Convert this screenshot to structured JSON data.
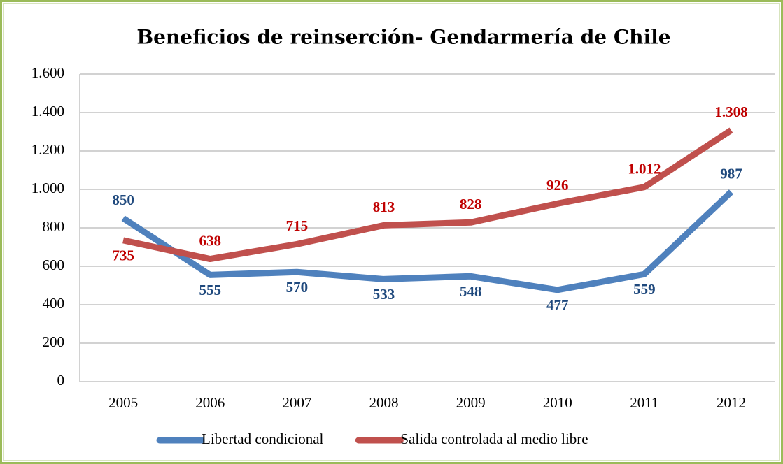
{
  "chart_data": {
    "type": "line",
    "title": "Beneficios de reinserción- Gendarmería de Chile",
    "categories": [
      "2005",
      "2006",
      "2007",
      "2008",
      "2009",
      "2010",
      "2011",
      "2012"
    ],
    "series": [
      {
        "name": "Libertad condicional",
        "color": "#4f81bd",
        "values": [
          850,
          555,
          570,
          533,
          548,
          477,
          559,
          987
        ]
      },
      {
        "name": "Salida controlada al medio libre",
        "color": "#c0504d",
        "values": [
          735,
          638,
          715,
          813,
          828,
          926,
          1012,
          1308
        ],
        "value_labels": [
          "735",
          "638",
          "715",
          "813",
          "828",
          "926",
          "1.012",
          "1.308"
        ]
      }
    ],
    "ylim": [
      0,
      1600
    ],
    "yticks": [
      0,
      200,
      400,
      600,
      800,
      {
        "value": 1000,
        "label": "1.000"
      },
      {
        "value": 1200,
        "label": "1.200"
      },
      {
        "value": 1400,
        "label": "1.400"
      },
      {
        "value": 1600,
        "label": "1.600"
      }
    ],
    "grid": true,
    "legend": "bottom"
  }
}
